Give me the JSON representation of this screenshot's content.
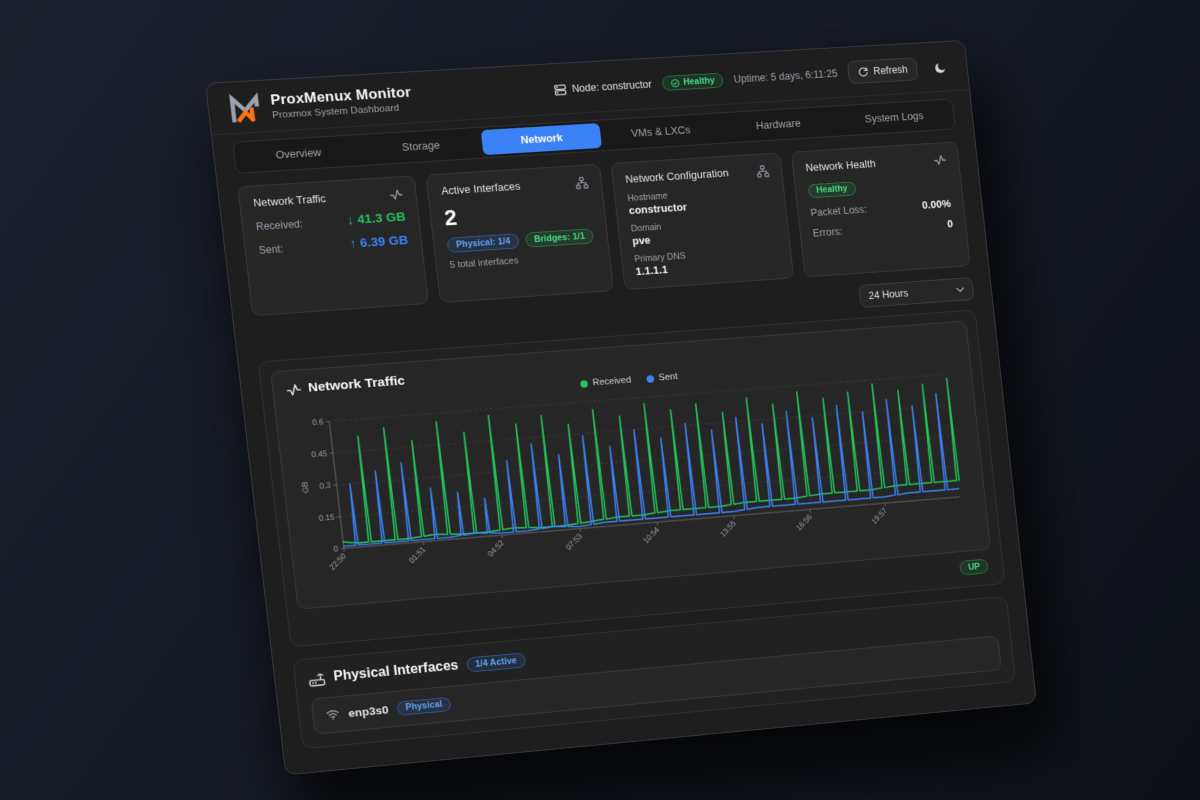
{
  "brand": {
    "title": "ProxMenux Monitor",
    "subtitle": "Proxmox System Dashboard"
  },
  "header": {
    "node_label": "Node: constructor",
    "health_badge": "Healthy",
    "uptime": "Uptime: 5 days, 6:11:25",
    "refresh_label": "Refresh"
  },
  "icons": {
    "logo": "proxmenux-m-logo",
    "node": "server-icon",
    "health": "check-circle-icon",
    "refresh": "refresh-icon",
    "theme": "moon-icon",
    "traffic": "activity-icon",
    "interfaces": "network-nodes-icon",
    "config": "network-tree-icon",
    "chart": "activity-icon",
    "range": "chevron-down-icon",
    "physical_section": "router-icon",
    "interface_row": "wifi-signal-icon"
  },
  "tabs": [
    {
      "label": "Overview",
      "active": false
    },
    {
      "label": "Storage",
      "active": false
    },
    {
      "label": "Network",
      "active": true
    },
    {
      "label": "VMs & LXCs",
      "active": false
    },
    {
      "label": "Hardware",
      "active": false
    },
    {
      "label": "System Logs",
      "active": false
    }
  ],
  "cards": {
    "traffic": {
      "title": "Network Traffic",
      "rows": [
        {
          "label": "Received:",
          "value": "↓ 41.3 GB",
          "color": "green"
        },
        {
          "label": "Sent:",
          "value": "↑ 6.39 GB",
          "color": "blue"
        }
      ]
    },
    "interfaces": {
      "title": "Active Interfaces",
      "value": "2",
      "badges": [
        {
          "label": "Physical: 1/4",
          "style": "blue"
        },
        {
          "label": "Bridges: 1/1",
          "style": "green"
        }
      ],
      "caption": "5 total interfaces"
    },
    "config": {
      "title": "Network Configuration",
      "fields": [
        {
          "label": "Hostname",
          "value": "constructor"
        },
        {
          "label": "Domain",
          "value": "pve"
        },
        {
          "label": "Primary DNS",
          "value": "1.1.1.1"
        }
      ]
    },
    "health": {
      "title": "Network Health",
      "badge": "Healthy",
      "rows": [
        {
          "label": "Packet Loss:",
          "value": "0.00%"
        },
        {
          "label": "Errors:",
          "value": "0"
        }
      ]
    }
  },
  "toolbar": {
    "range_value": "24 Hours"
  },
  "chart_data": {
    "type": "line",
    "title": "Network Traffic",
    "ylabel": "GB",
    "ylim": [
      0,
      0.6
    ],
    "yticks": [
      0,
      0.15,
      0.3,
      0.45,
      0.6
    ],
    "grid": "dashed horizontal",
    "legend_position": "top-center",
    "xticks": [
      {
        "idx": 0,
        "label": "22:50"
      },
      {
        "idx": 6,
        "label": "01:51"
      },
      {
        "idx": 12,
        "label": "04:52"
      },
      {
        "idx": 18,
        "label": "07:53"
      },
      {
        "idx": 24,
        "label": "10:54"
      },
      {
        "idx": 30,
        "label": "13:55"
      },
      {
        "idx": 36,
        "label": "16:56"
      },
      {
        "idx": 42,
        "label": "19:57"
      }
    ],
    "legend": [
      {
        "name": "Received",
        "color": "#22c55e"
      },
      {
        "name": "Sent",
        "color": "#3b82f6"
      }
    ],
    "series": [
      {
        "name": "Received",
        "color": "#22c55e",
        "values": [
          0.03,
          0.02,
          0.52,
          0.02,
          0.55,
          0.02,
          0.48,
          0.03,
          0.56,
          0.02,
          0.5,
          0.02,
          0.57,
          0.03,
          0.52,
          0.02,
          0.55,
          0.02,
          0.5,
          0.03,
          0.56,
          0.04,
          0.52,
          0.04,
          0.57,
          0.05,
          0.53,
          0.05,
          0.55,
          0.05,
          0.5,
          0.06,
          0.56,
          0.06,
          0.52,
          0.06,
          0.57,
          0.07,
          0.53,
          0.07,
          0.55,
          0.07,
          0.58,
          0.08,
          0.54,
          0.08,
          0.56,
          0.08,
          0.58
        ]
      },
      {
        "name": "Sent",
        "color": "#3b82f6",
        "values": [
          0.01,
          0.3,
          0.01,
          0.35,
          0.01,
          0.38,
          0.01,
          0.25,
          0.01,
          0.22,
          0.02,
          0.18,
          0.01,
          0.35,
          0.01,
          0.42,
          0.02,
          0.36,
          0.01,
          0.44,
          0.02,
          0.38,
          0.02,
          0.45,
          0.02,
          0.4,
          0.02,
          0.46,
          0.02,
          0.42,
          0.02,
          0.47,
          0.03,
          0.43,
          0.03,
          0.48,
          0.03,
          0.44,
          0.03,
          0.49,
          0.03,
          0.45,
          0.03,
          0.5,
          0.04,
          0.46,
          0.04,
          0.51,
          0.04
        ]
      }
    ]
  },
  "status_row": {
    "badge": "UP"
  },
  "physical": {
    "title": "Physical Interfaces",
    "badge": "1/4 Active",
    "rows": [
      {
        "name": "enp3s0",
        "badge": "Physical"
      }
    ]
  },
  "colors": {
    "accent": "#3b82f6",
    "green": "#22c55e",
    "green_text": "#4ade80",
    "blue_text": "#60a5fa",
    "orange_logo": "#f97316"
  }
}
